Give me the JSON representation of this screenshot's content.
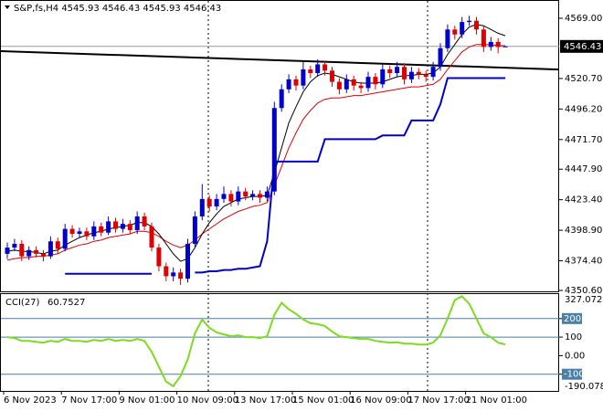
{
  "chart_data": {
    "type": "candlestick",
    "title": "S&P,fs,H4  4545.93 4546.43 4545.93 4546,43",
    "categories": [
      "6 Nov 2023",
      null,
      null,
      null,
      null,
      null,
      null,
      null,
      "7 Nov 17:00",
      null,
      null,
      null,
      null,
      null,
      null,
      null,
      "9 Nov 01:00",
      null,
      null,
      null,
      null,
      null,
      null,
      null,
      "10 Nov 09:00",
      null,
      null,
      null,
      null,
      null,
      null,
      null,
      "13 Nov 17:00",
      null,
      null,
      null,
      null,
      null,
      null,
      null,
      "15 Nov 01:00",
      null,
      null,
      null,
      null,
      null,
      null,
      null,
      "16 Nov 09:00",
      null,
      null,
      null,
      null,
      null,
      null,
      null,
      "17 Nov 17:00",
      null,
      null,
      null,
      null,
      null,
      null,
      null,
      "21 Nov 01:00",
      null,
      null,
      null,
      null,
      null
    ],
    "ohlc": [
      [
        4380,
        4389,
        4376,
        4385
      ],
      [
        4385,
        4392,
        4382,
        4388
      ],
      [
        4388,
        4391,
        4374,
        4378
      ],
      [
        4378,
        4386,
        4375,
        4383
      ],
      [
        4383,
        4386,
        4377,
        4380
      ],
      [
        4380,
        4383,
        4374,
        4378
      ],
      [
        4378,
        4394,
        4376,
        4390
      ],
      [
        4390,
        4393,
        4380,
        4384
      ],
      [
        4384,
        4404,
        4382,
        4400
      ],
      [
        4400,
        4403,
        4393,
        4396
      ],
      [
        4396,
        4401,
        4393,
        4398
      ],
      [
        4398,
        4401,
        4391,
        4394
      ],
      [
        4394,
        4406,
        4391,
        4402
      ],
      [
        4402,
        4405,
        4394,
        4397
      ],
      [
        4397,
        4410,
        4395,
        4406
      ],
      [
        4406,
        4409,
        4397,
        4400
      ],
      [
        4400,
        4408,
        4397,
        4404
      ],
      [
        4404,
        4407,
        4396,
        4399
      ],
      [
        4399,
        4414,
        4396,
        4410
      ],
      [
        4410,
        4413,
        4399,
        4402
      ],
      [
        4402,
        4405,
        4382,
        4385
      ],
      [
        4385,
        4388,
        4366,
        4370
      ],
      [
        4370,
        4373,
        4358,
        4362
      ],
      [
        4362,
        4369,
        4358,
        4365
      ],
      [
        4365,
        4368,
        4355,
        4360
      ],
      [
        4360,
        4392,
        4357,
        4388
      ],
      [
        4388,
        4414,
        4385,
        4410
      ],
      [
        4410,
        4436,
        4407,
        4424
      ],
      [
        4424,
        4427,
        4414,
        4418
      ],
      [
        4418,
        4428,
        4415,
        4424
      ],
      [
        4424,
        4434,
        4421,
        4428
      ],
      [
        4428,
        4431,
        4418,
        4422
      ],
      [
        4422,
        4434,
        4419,
        4430
      ],
      [
        4430,
        4433,
        4423,
        4426
      ],
      [
        4426,
        4431,
        4423,
        4428
      ],
      [
        4428,
        4431,
        4421,
        4425
      ],
      [
        4425,
        4434,
        4422,
        4430
      ],
      [
        4430,
        4502,
        4427,
        4497
      ],
      [
        4497,
        4516,
        4494,
        4512
      ],
      [
        4512,
        4524,
        4509,
        4520
      ],
      [
        4520,
        4523,
        4511,
        4515
      ],
      [
        4515,
        4534,
        4512,
        4528
      ],
      [
        4528,
        4531,
        4521,
        4525
      ],
      [
        4525,
        4536,
        4522,
        4532
      ],
      [
        4532,
        4535,
        4523,
        4527
      ],
      [
        4527,
        4530,
        4514,
        4518
      ],
      [
        4518,
        4521,
        4508,
        4512
      ],
      [
        4512,
        4524,
        4509,
        4520
      ],
      [
        4520,
        4523,
        4511,
        4515
      ],
      [
        4515,
        4518,
        4509,
        4513
      ],
      [
        4513,
        4526,
        4510,
        4522
      ],
      [
        4522,
        4525,
        4512,
        4516
      ],
      [
        4516,
        4532,
        4513,
        4528
      ],
      [
        4528,
        4531,
        4521,
        4525
      ],
      [
        4525,
        4534,
        4522,
        4530
      ],
      [
        4530,
        4533,
        4516,
        4520
      ],
      [
        4520,
        4530,
        4517,
        4526
      ],
      [
        4526,
        4529,
        4520,
        4524
      ],
      [
        4524,
        4527,
        4518,
        4522
      ],
      [
        4522,
        4534,
        4519,
        4530
      ],
      [
        4530,
        4549,
        4527,
        4545
      ],
      [
        4545,
        4564,
        4542,
        4560
      ],
      [
        4560,
        4563,
        4552,
        4556
      ],
      [
        4556,
        4570,
        4553,
        4566
      ],
      [
        4566,
        4571,
        4563,
        4567
      ],
      [
        4567,
        4570,
        4556,
        4560
      ],
      [
        4560,
        4563,
        4542,
        4546
      ],
      [
        4546,
        4554,
        4543,
        4550
      ],
      [
        4550,
        4553,
        4541,
        4545.93
      ],
      [
        4545.93,
        4546.43,
        4545.93,
        4546.43
      ]
    ],
    "up_color": "#0000cd",
    "down_color": "#e00000",
    "series": [
      {
        "color": "#e00000",
        "values": [
          4375,
          4376,
          4377,
          4377,
          4378,
          4378,
          4379,
          4380,
          4383,
          4385,
          4387,
          4388,
          4390,
          4391,
          4393,
          4394,
          4395,
          4396,
          4398,
          4398,
          4397,
          4394,
          4390,
          4387,
          4385,
          4387,
          4391,
          4396,
          4400,
          4404,
          4408,
          4411,
          4414,
          4416,
          4418,
          4419,
          4421,
          4435,
          4450,
          4465,
          4477,
          4488,
          4495,
          4501,
          4504,
          4505,
          4505,
          4506,
          4507,
          4507,
          4508,
          4509,
          4510,
          4511,
          4512,
          4513,
          4514,
          4514,
          4515,
          4516,
          4520,
          4528,
          4535,
          4542,
          4546,
          4548,
          4548,
          4548,
          4547,
          4547
        ]
      },
      {
        "color": "#000000",
        "values": [
          4382,
          4383,
          4382,
          4382,
          4381,
          4380,
          4382,
          4383,
          4387,
          4390,
          4393,
          4395,
          4397,
          4398,
          4400,
          4401,
          4402,
          4403,
          4405,
          4405,
          4402,
          4396,
          4388,
          4380,
          4374,
          4376,
          4385,
          4396,
          4405,
          4412,
          4418,
          4421,
          4424,
          4425,
          4426,
          4426,
          4427,
          4445,
          4465,
          4485,
          4498,
          4510,
          4518,
          4523,
          4525,
          4524,
          4522,
          4520,
          4518,
          4517,
          4517,
          4517,
          4518,
          4520,
          4522,
          4523,
          4523,
          4524,
          4524,
          4525,
          4530,
          4540,
          4548,
          4556,
          4562,
          4564,
          4563,
          4560,
          4557,
          4555
        ]
      },
      {
        "color": "#0000cd",
        "values": [
          null,
          null,
          null,
          null,
          null,
          null,
          null,
          null,
          4364,
          4364,
          4364,
          4364,
          4364,
          4364,
          4364,
          4364,
          4364,
          4364,
          4364,
          4364,
          4364,
          null,
          null,
          null,
          null,
          null,
          4365,
          4365,
          4366,
          4366,
          4367,
          4367,
          4368,
          4368,
          4369,
          4370,
          4390,
          4454,
          4454,
          4454,
          4454,
          4454,
          4454,
          4454,
          4472,
          4472,
          4472,
          4472,
          4472,
          4472,
          4472,
          4472,
          4475,
          4475,
          4475,
          4475,
          4487,
          4487,
          4487,
          4487,
          4500,
          4521,
          4521,
          4521,
          4521,
          4521,
          4521,
          4521,
          4521,
          4521
        ]
      }
    ],
    "long_ma": {
      "color": "#000000",
      "values": [
        4542.6,
        4527.9
      ]
    },
    "ylim": [
      4350.6,
      4582.2
    ],
    "yticks": [
      {
        "value": 4569,
        "label": "4569.00"
      },
      {
        "value": 4520.7,
        "label": "4520.70"
      },
      {
        "value": 4496.2,
        "label": "4496.20"
      },
      {
        "value": 4471.7,
        "label": "4471.70"
      },
      {
        "value": 4447.9,
        "label": "4447.90"
      },
      {
        "value": 4423.4,
        "label": "4423.40"
      },
      {
        "value": 4398.9,
        "label": "4398.90"
      },
      {
        "value": 4374.4,
        "label": "4374.40"
      },
      {
        "value": 4350.6,
        "label": "4350.60"
      }
    ],
    "cci": {
      "name": "CCI(27)",
      "color": "#7ddc1f",
      "values": [
        100,
        95,
        80,
        80,
        75,
        70,
        80,
        75,
        90,
        80,
        80,
        75,
        85,
        80,
        90,
        80,
        85,
        80,
        90,
        80,
        20,
        -60,
        -140,
        -165,
        -110,
        -20,
        120,
        195,
        150,
        125,
        115,
        105,
        110,
        100,
        100,
        95,
        105,
        220,
        285,
        250,
        225,
        195,
        175,
        170,
        160,
        130,
        105,
        100,
        95,
        90,
        90,
        80,
        75,
        70,
        72,
        65,
        65,
        60,
        60,
        70,
        110,
        200,
        300,
        320,
        280,
        200,
        120,
        100,
        70,
        60.7527
      ],
      "ylim": [
        -190.0787,
        327.0724
      ],
      "ylim_labels": [
        "-190.0787",
        "327.0724"
      ],
      "yticks": [
        200,
        100,
        {
          "value": 0,
          "label": "0.00"
        },
        -100
      ],
      "levels": [
        200,
        100,
        -100
      ],
      "level_color": "#4a7fa8"
    }
  }
}
